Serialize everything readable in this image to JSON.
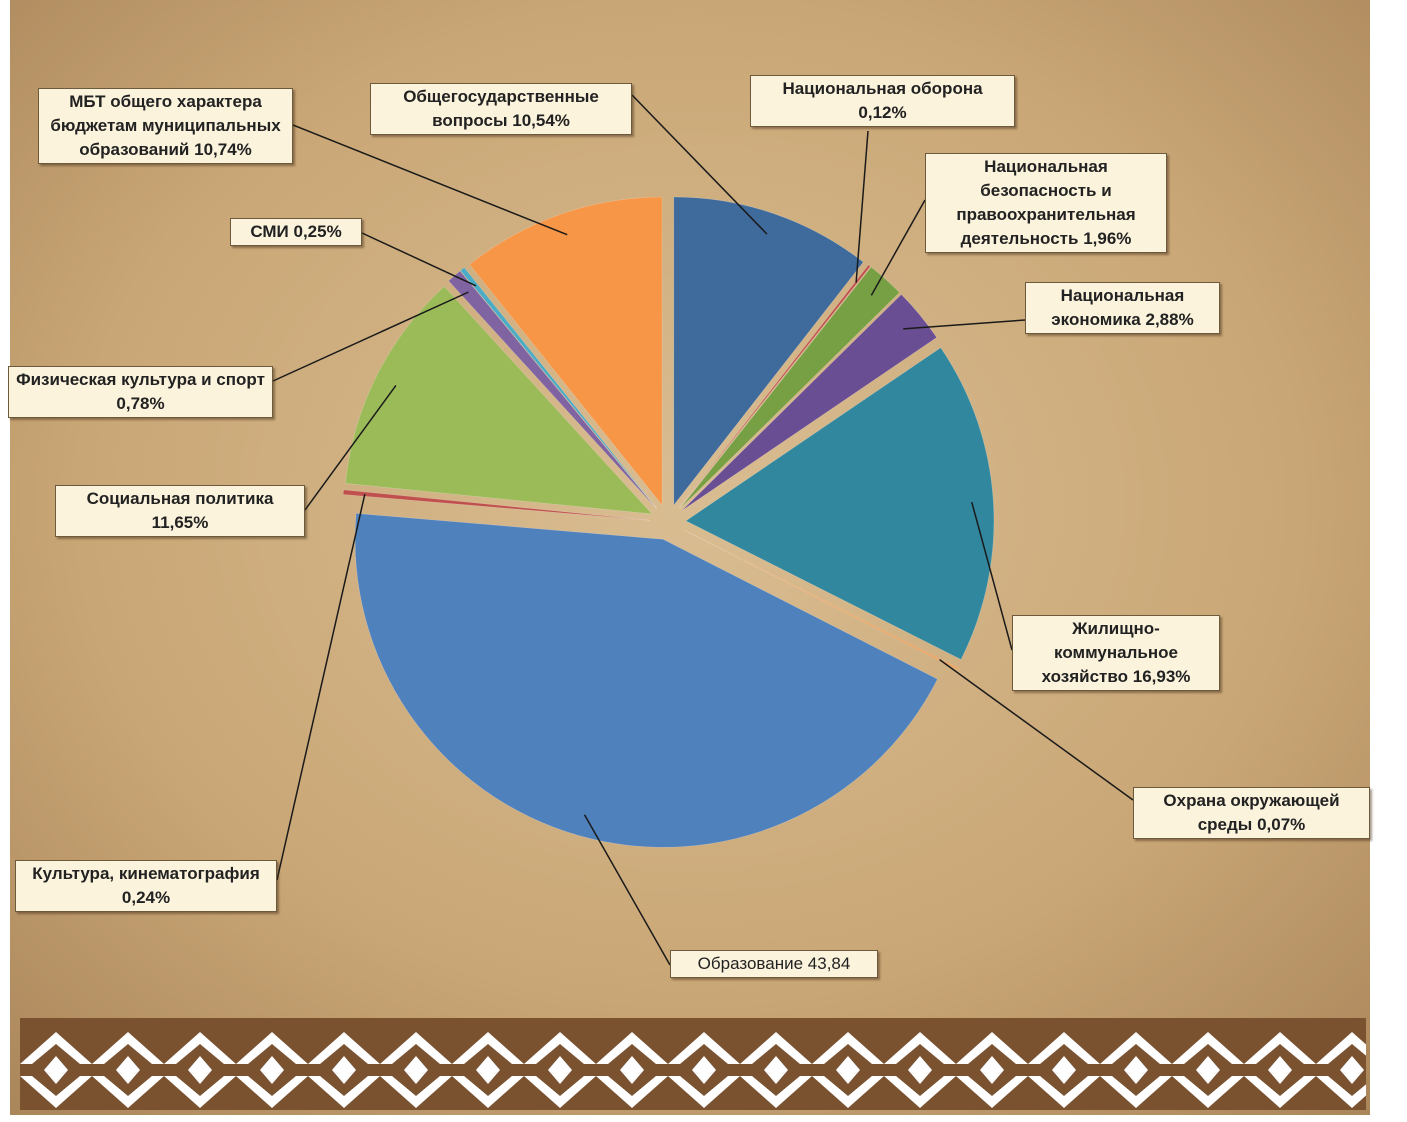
{
  "chart_data": {
    "type": "pie",
    "categories": [
      "Общегосударственные вопросы",
      "Национальная оборона",
      "Национальная безопасность и правоохранительная деятельность",
      "Национальная экономика",
      "Жилищно-коммунальное хозяйство",
      "Охрана окружающей среды",
      "Образование",
      "Культура, кинематография",
      "Социальная политика",
      "Физическая культура и спорт",
      "СМИ",
      "МБТ общего характера бюджетам муниципальных образований"
    ],
    "values": [
      10.54,
      0.12,
      1.96,
      2.88,
      16.93,
      0.07,
      43.84,
      0.24,
      11.65,
      0.78,
      0.25,
      10.74
    ],
    "value_labels": [
      "10,54%",
      "0,12%",
      "1,96%",
      "2,88%",
      "16,93%",
      "0,07%",
      "43,84",
      "0,24%",
      "11,65%",
      "0,78%",
      "0,25%",
      "10,74%"
    ],
    "colors": [
      "#3e6a9c",
      "#c0504d",
      "#77a045",
      "#6a4e94",
      "#31879e",
      "#f79646",
      "#4f81bd",
      "#c0504d",
      "#9bbb59",
      "#8064a2",
      "#4bacc6",
      "#f79646"
    ]
  }
}
